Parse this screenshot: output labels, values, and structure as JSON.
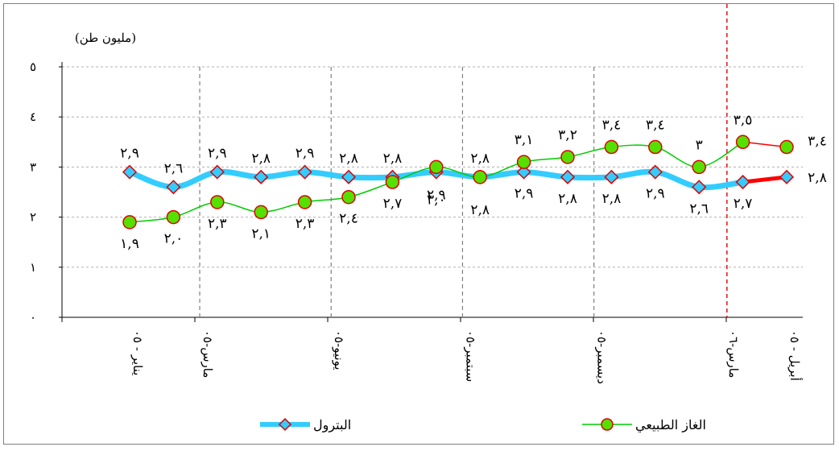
{
  "chart_data": {
    "type": "line",
    "unit_label": "(مليون طن)",
    "ylim": [
      0,
      5
    ],
    "y_ticks": [
      "٠",
      "١",
      "٢",
      "٣",
      "٤",
      "٥"
    ],
    "grid": true,
    "legend_position": "bottom",
    "category_labels": [
      {
        "index": 0,
        "text": "يناير - ٠٥"
      },
      {
        "index": 1.6,
        "text": "مارس-٠٥"
      },
      {
        "index": 4.6,
        "text": "يونيو-٠٥"
      },
      {
        "index": 7.6,
        "text": "سبتمبر-٠٥"
      },
      {
        "index": 10.6,
        "text": "ديسمبر-٠٥"
      },
      {
        "index": 13.6,
        "text": "مارس-٠٦"
      },
      {
        "index": 15,
        "text": "أبريل - ٠٥"
      }
    ],
    "series": [
      {
        "name": "البترول",
        "color": "#33ccff",
        "marker": "diamond",
        "values": [
          2.9,
          2.6,
          2.9,
          2.8,
          2.9,
          2.8,
          2.8,
          2.9,
          2.8,
          2.9,
          2.8,
          2.8,
          2.9,
          2.6,
          2.7,
          2.8
        ],
        "labels": [
          "٢,٩",
          "٢,٦",
          "٢,٩",
          "٢,٨",
          "٢,٩",
          "٢,٨",
          "٢,٨",
          "٢,٩",
          "٢,٨",
          "٢,٩",
          "٢,٨",
          "٢,٨",
          "٢,٩",
          "٢,٦",
          "٢,٧",
          "٢,٨"
        ]
      },
      {
        "name": "الغاز الطبيعي",
        "color": "#00cc00",
        "marker": "circle",
        "values": [
          1.9,
          2.0,
          2.3,
          2.1,
          2.3,
          2.4,
          2.7,
          3.0,
          2.8,
          3.1,
          3.2,
          3.4,
          3.4,
          3.0,
          3.5,
          3.4
        ],
        "labels": [
          "١,٩",
          "٢,٠",
          "٢,٣",
          "٢,١",
          "٢,٣",
          "٢,٤",
          "٢,٧",
          "٣,٠",
          "٢,٨",
          "٣,١",
          "٣,٢",
          "٣,٤",
          "٣,٤",
          "٣",
          "٣,٥",
          "٣,٤"
        ]
      }
    ]
  }
}
